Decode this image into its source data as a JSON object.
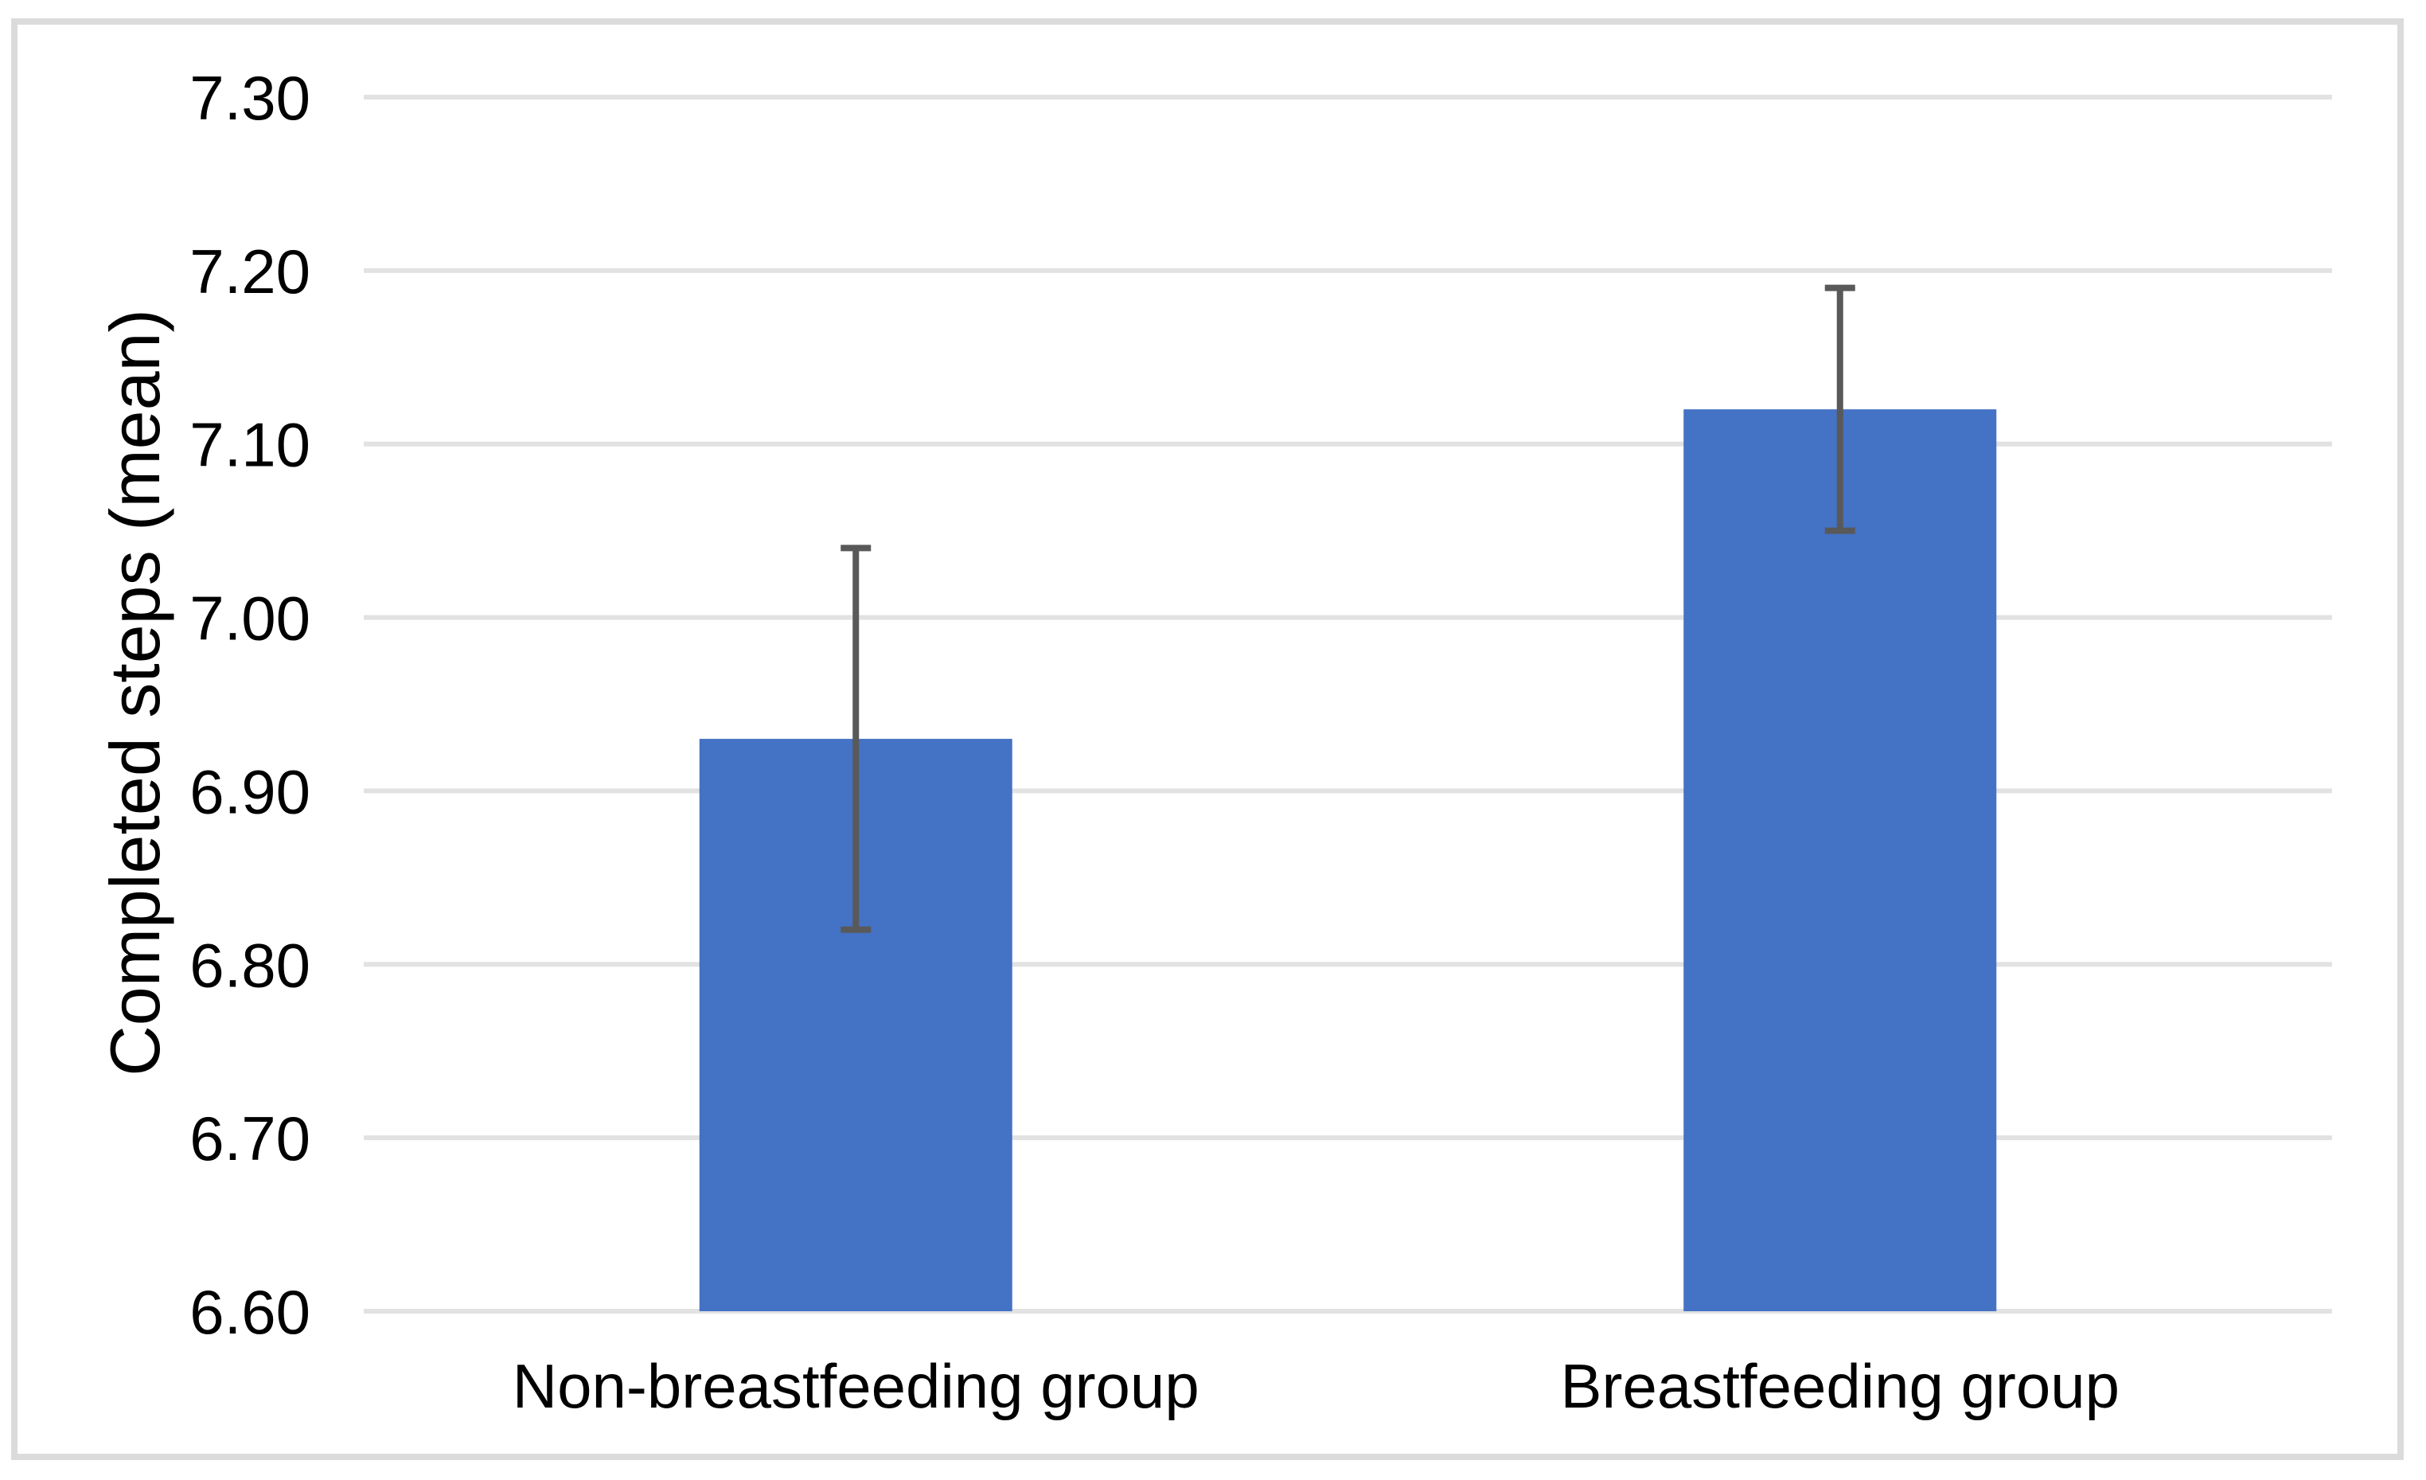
{
  "figure": {
    "background": "#ffffff",
    "border_color": "#dbdbdb"
  },
  "chart_data": {
    "type": "bar",
    "title": "",
    "xlabel": "",
    "ylabel": "Completed steps (mean)",
    "categories": [
      "Non-breastfeeding group",
      "Breastfeeding group"
    ],
    "values": [
      6.93,
      7.12
    ],
    "error_bars": [
      {
        "low": 6.82,
        "high": 7.04
      },
      {
        "low": 7.05,
        "high": 7.19
      }
    ],
    "ylim": [
      6.6,
      7.3
    ],
    "ytick_step": 0.1,
    "yticks": [
      "6.60",
      "6.70",
      "6.80",
      "6.90",
      "7.00",
      "7.10",
      "7.20",
      "7.30"
    ],
    "grid": true,
    "legend_position": "none",
    "bar_color": "#4472c4",
    "error_bar_color": "#595959",
    "gridline_color": "#e2e2e2",
    "axis_text_color": "#000000"
  }
}
